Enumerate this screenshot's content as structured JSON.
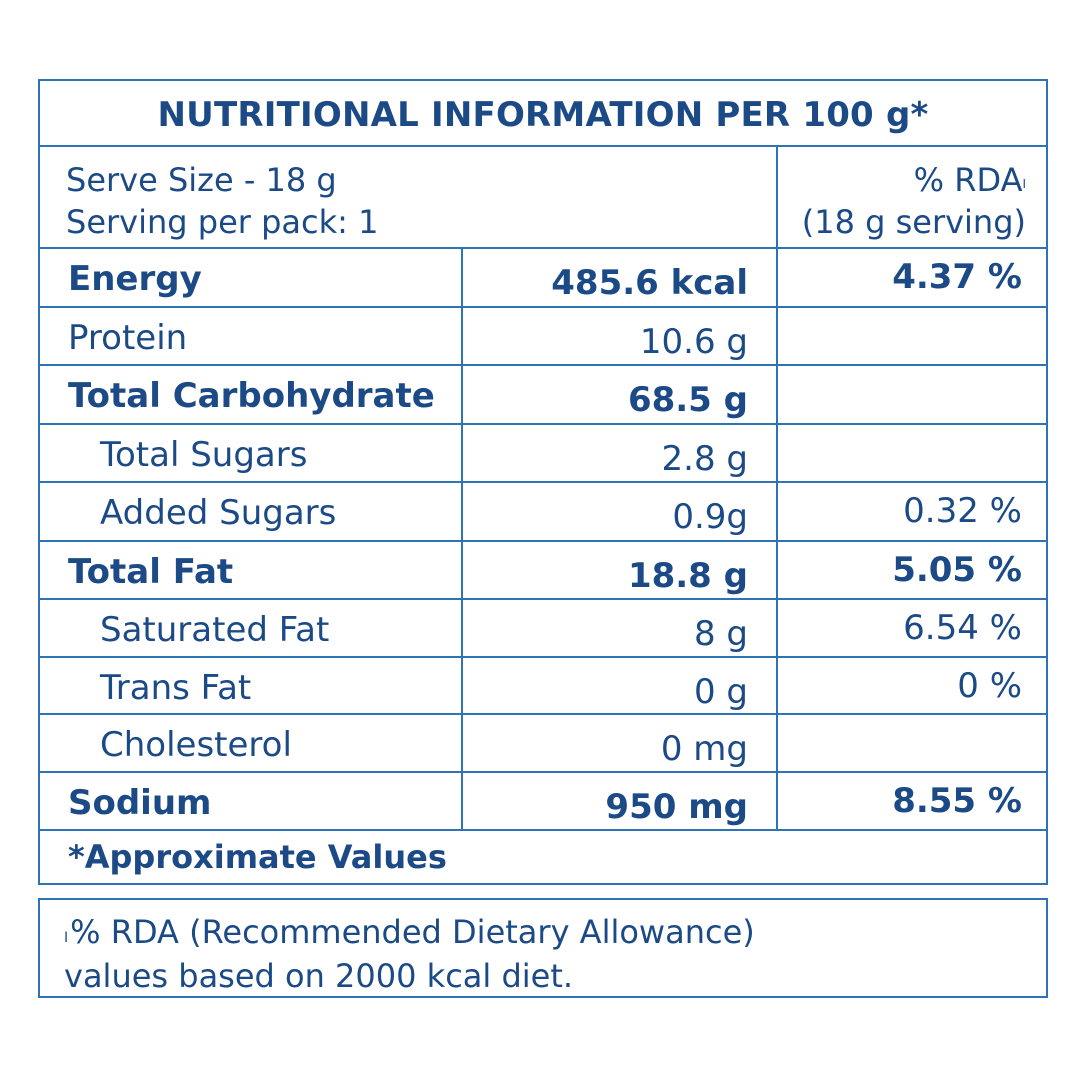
{
  "title": "NUTRITIONAL INFORMATION PER 100 g*",
  "serve_size": "Serve Size - 18 g",
  "serving_per_pack": "Serving per pack: 1",
  "rda_header": "% RDA",
  "rda_header_mark": "I",
  "rda_serving": "(18 g serving)",
  "rows": [
    {
      "name": "Energy",
      "amount": "485.6 kcal",
      "rda": "4.37 %"
    },
    {
      "name": "Protein",
      "amount": "10.6 g",
      "rda": ""
    },
    {
      "name": "Total Carbohydrate",
      "amount": "68.5 g",
      "rda": ""
    },
    {
      "name": "Total Sugars",
      "amount": "2.8 g",
      "rda": ""
    },
    {
      "name": "Added Sugars",
      "amount": "0.9g",
      "rda": "0.32 %"
    },
    {
      "name": "Total Fat",
      "amount": "18.8 g",
      "rda": "5.05 %"
    },
    {
      "name": "Saturated Fat",
      "amount": "8 g",
      "rda": "6.54 %"
    },
    {
      "name": "Trans Fat",
      "amount": "0 g",
      "rda": "0 %"
    },
    {
      "name": "Cholesterol",
      "amount": "0 mg",
      "rda": ""
    },
    {
      "name": "Sodium",
      "amount": "950 mg",
      "rda": "8.55 %"
    }
  ],
  "approx_note": "*Approximate Values",
  "footnote_mark": "I",
  "footnote_line1": "% RDA (Recommended Dietary Allowance)",
  "footnote_line2": "values based on 2000 kcal diet.",
  "colors": {
    "text": "#1b4a86",
    "border": "#2e74b5"
  }
}
